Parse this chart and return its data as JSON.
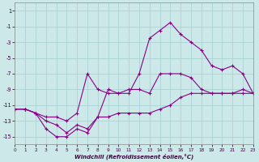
{
  "background_color": "#cce8e8",
  "grid_color": "#aad4d4",
  "line_color": "#880088",
  "xlabel": "Windchill (Refroidissement éolien,°C)",
  "series1_x": [
    0,
    1,
    2,
    3,
    4,
    5,
    6,
    7,
    8,
    9,
    10,
    11,
    12,
    13,
    14,
    15,
    16,
    17,
    18,
    19,
    20,
    21,
    22,
    23
  ],
  "series1_y": [
    -11.5,
    -11.5,
    -12,
    -14,
    -15,
    -15,
    -14,
    -14.5,
    -12.5,
    -12.5,
    -12,
    -12,
    -12,
    -12,
    -11.5,
    -11,
    -10,
    -9.5,
    -9.5,
    -9.5,
    -9.5,
    -9.5,
    -9.5,
    -9.5
  ],
  "series2_x": [
    0,
    1,
    2,
    3,
    4,
    5,
    6,
    7,
    8,
    9,
    10,
    11,
    12,
    13,
    14,
    15,
    16,
    17,
    18,
    19,
    20,
    21,
    22,
    23
  ],
  "series2_y": [
    -11.5,
    -11.5,
    -12,
    -13,
    -13.5,
    -14.5,
    -13.5,
    -14,
    -12.5,
    -9,
    -9.5,
    -9,
    -9,
    -9.5,
    -7,
    -7,
    -7,
    -7.5,
    -9,
    -9.5,
    -9.5,
    -9.5,
    -9,
    -9.5
  ],
  "series3_x": [
    0,
    1,
    2,
    3,
    4,
    5,
    6,
    7,
    8,
    9,
    10,
    11,
    12,
    13,
    14,
    15,
    16,
    17,
    18,
    19,
    20,
    21,
    22,
    23
  ],
  "series3_y": [
    -11.5,
    -11.5,
    -12,
    -12.5,
    -12.5,
    -13,
    -12,
    -7,
    -9,
    -9.5,
    -9.5,
    -9.5,
    -7,
    -2.5,
    -1.5,
    -0.5,
    -2,
    -3,
    -4,
    -6,
    -6.5,
    -6,
    -7,
    -9.5
  ],
  "ylim": [
    -16,
    2
  ],
  "xlim": [
    0,
    23
  ],
  "yticks": [
    1,
    -1,
    -3,
    -5,
    -7,
    -9,
    -11,
    -13,
    -15
  ],
  "xticks": [
    0,
    1,
    2,
    3,
    4,
    5,
    6,
    7,
    8,
    9,
    10,
    11,
    12,
    13,
    14,
    15,
    16,
    17,
    18,
    19,
    20,
    21,
    22,
    23
  ]
}
